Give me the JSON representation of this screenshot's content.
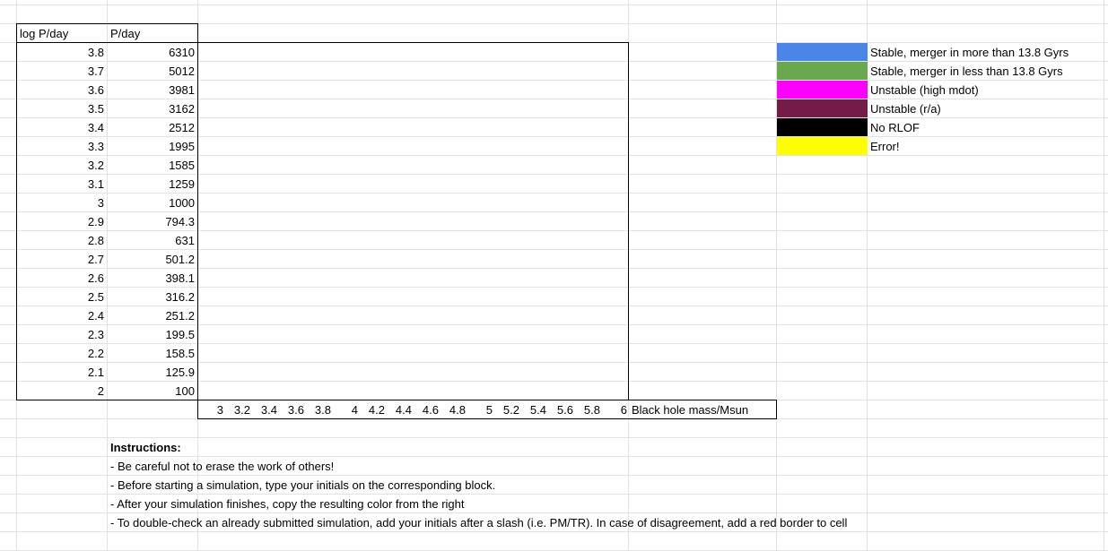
{
  "headers": {
    "log_p": "log P/day",
    "p": "P/day"
  },
  "rows": [
    {
      "log_p": "3.8",
      "p": "6310"
    },
    {
      "log_p": "3.7",
      "p": "5012"
    },
    {
      "log_p": "3.6",
      "p": "3981"
    },
    {
      "log_p": "3.5",
      "p": "3162"
    },
    {
      "log_p": "3.4",
      "p": "2512"
    },
    {
      "log_p": "3.3",
      "p": "1995"
    },
    {
      "log_p": "3.2",
      "p": "1585"
    },
    {
      "log_p": "3.1",
      "p": "1259"
    },
    {
      "log_p": "3",
      "p": "1000"
    },
    {
      "log_p": "2.9",
      "p": "794.3"
    },
    {
      "log_p": "2.8",
      "p": "631"
    },
    {
      "log_p": "2.7",
      "p": "501.2"
    },
    {
      "log_p": "2.6",
      "p": "398.1"
    },
    {
      "log_p": "2.5",
      "p": "316.2"
    },
    {
      "log_p": "2.4",
      "p": "251.2"
    },
    {
      "log_p": "2.3",
      "p": "199.5"
    },
    {
      "log_p": "2.2",
      "p": "158.5"
    },
    {
      "log_p": "2.1",
      "p": "125.9"
    },
    {
      "log_p": "2",
      "p": "100"
    }
  ],
  "mass_axis": {
    "values": [
      "3",
      "3.2",
      "3.4",
      "3.6",
      "3.8",
      "4",
      "4.2",
      "4.4",
      "4.6",
      "4.8",
      "5",
      "5.2",
      "5.4",
      "5.6",
      "5.8",
      "6"
    ],
    "label": "Black hole mass/Msun"
  },
  "legend": [
    {
      "color": "#4a86e8",
      "label": "Stable, merger in more than 13.8 Gyrs"
    },
    {
      "color": "#6aa84f",
      "label": "Stable, merger in less than 13.8 Gyrs"
    },
    {
      "color": "#ff00ff",
      "label": "Unstable (high mdot)"
    },
    {
      "color": "#741b47",
      "label": "Unstable (r/a)"
    },
    {
      "color": "#000000",
      "label": "No RLOF"
    },
    {
      "color": "#ffff00",
      "label": "Error!"
    }
  ],
  "instructions": {
    "title": "Instructions:",
    "lines": [
      "- Be careful not to erase the work of others!",
      "- Before starting a simulation, type your initials on the corresponding block.",
      "- After your simulation finishes, copy the resulting color from the right",
      "- To double-check an already submitted simulation, add your initials after a slash (i.e. PM/TR). In case of disagreement, add a red border to cell"
    ]
  }
}
